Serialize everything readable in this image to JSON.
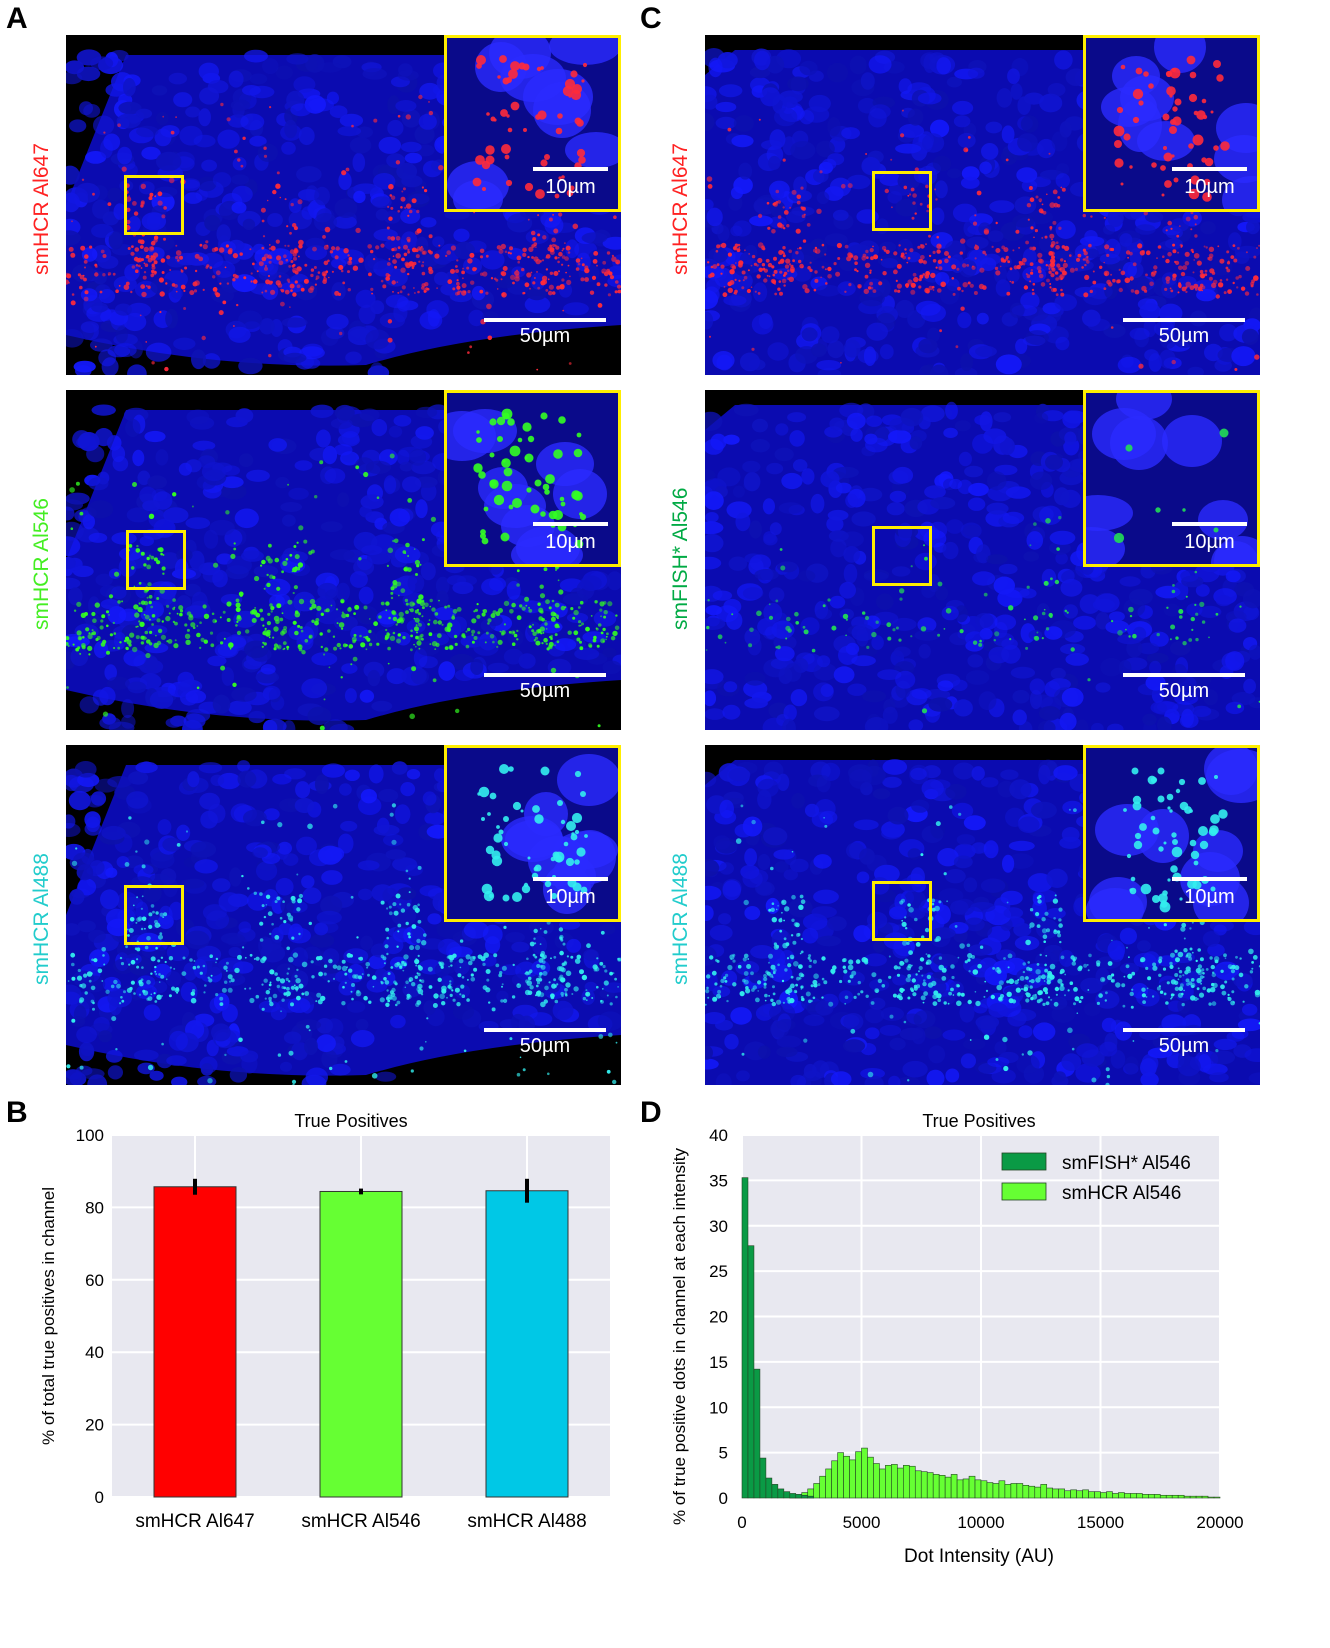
{
  "panels": {
    "A": "A",
    "B": "B",
    "C": "C",
    "D": "D"
  },
  "colors": {
    "nuclei": "#1a1aff",
    "red": "#ff1a1a",
    "green": "#44ff22",
    "cyan": "#22dddd",
    "dark_green": "#00aa44",
    "roi": "#ffee00"
  },
  "micrographs": [
    {
      "id": "A1",
      "probe": "smHCR",
      "dye": "Al647",
      "dye_color": "#ff2222",
      "signal": "red",
      "inset_scale": "10µm",
      "scale": "50µm"
    },
    {
      "id": "A2",
      "probe": "smHCR",
      "dye": "Al546",
      "dye_color": "#44ee22",
      "signal": "green",
      "inset_scale": "10µm",
      "scale": "50µm"
    },
    {
      "id": "A3",
      "probe": "smHCR",
      "dye": "Al488",
      "dye_color": "#22cccc",
      "signal": "cyan",
      "inset_scale": "10µm",
      "scale": "50µm"
    },
    {
      "id": "C1",
      "probe": "smHCR",
      "dye": "Al647",
      "dye_color": "#ff2222",
      "signal": "red",
      "inset_scale": "10µm",
      "scale": "50µm"
    },
    {
      "id": "C2",
      "probe": "smFISH*",
      "dye": "Al546",
      "dye_color": "#00aa44",
      "signal": "darkgreen",
      "inset_scale": "10µm",
      "scale": "50µm"
    },
    {
      "id": "C3",
      "probe": "smHCR",
      "dye": "Al488",
      "dye_color": "#22cccc",
      "signal": "cyan",
      "inset_scale": "10µm",
      "scale": "50µm"
    }
  ],
  "chart_data": [
    {
      "type": "bar",
      "title": "True Positives",
      "ylabel": "% of total true positives in channel",
      "xlabel": "",
      "ylim": [
        0,
        100
      ],
      "yticks": [
        0,
        20,
        40,
        60,
        80,
        100
      ],
      "categories": [
        "smHCR Al647",
        "smHCR Al546",
        "smHCR Al488"
      ],
      "values": [
        85.7,
        84.4,
        84.6
      ],
      "errors": [
        2.2,
        0.8,
        3.3
      ],
      "bar_colors": [
        "#ff0000",
        "#66ff33",
        "#00c8e6"
      ],
      "grid": true
    },
    {
      "type": "bar",
      "title": "True Positives",
      "xlabel": "Dot Intensity (AU)",
      "ylabel": "% of true positive dots in channel at each intensity",
      "xlim": [
        0,
        20000
      ],
      "ylim": [
        0,
        40
      ],
      "xticks": [
        0,
        5000,
        10000,
        15000,
        20000
      ],
      "yticks": [
        0,
        5,
        10,
        15,
        20,
        25,
        30,
        35,
        40
      ],
      "bin_width": 250,
      "legend_position": "top-right",
      "grid": true,
      "series": [
        {
          "name": "smFISH* Al546",
          "color": "#0a9a45",
          "x": [
            0,
            250,
            500,
            750,
            1000,
            1250,
            1500,
            1750,
            2000,
            2250,
            2500,
            2750
          ],
          "values": [
            35.3,
            27.8,
            14.2,
            4.4,
            2.2,
            1.5,
            1.0,
            0.7,
            0.5,
            0.4,
            0.3,
            0.2
          ]
        },
        {
          "name": "smHCR Al546",
          "color": "#66ff33",
          "x": [
            2000,
            2250,
            2500,
            2750,
            3000,
            3250,
            3500,
            3750,
            4000,
            4250,
            4500,
            4750,
            5000,
            5250,
            5500,
            5750,
            6000,
            6250,
            6500,
            6750,
            7000,
            7250,
            7500,
            7750,
            8000,
            8250,
            8500,
            8750,
            9000,
            9250,
            9500,
            9750,
            10000,
            10250,
            10500,
            10750,
            11000,
            11250,
            11500,
            11750,
            12000,
            12250,
            12500,
            12750,
            13000,
            13250,
            13500,
            13750,
            14000,
            14250,
            14500,
            14750,
            15000,
            15250,
            15500,
            15750,
            16000,
            16250,
            16500,
            16750,
            17000,
            17250,
            17500,
            17750,
            18000,
            18250,
            18500,
            18750,
            19000,
            19250,
            19500,
            19750
          ],
          "values": [
            0.2,
            0.3,
            0.6,
            1.0,
            1.6,
            2.4,
            3.2,
            4.1,
            5.0,
            4.6,
            4.2,
            5.1,
            5.5,
            4.5,
            3.8,
            3.2,
            3.6,
            3.7,
            3.3,
            3.6,
            3.5,
            3.0,
            2.9,
            2.8,
            2.6,
            2.5,
            2.3,
            2.6,
            2.0,
            2.1,
            2.4,
            2.0,
            1.9,
            1.7,
            1.6,
            1.9,
            1.5,
            1.6,
            1.6,
            1.4,
            1.3,
            1.2,
            1.5,
            1.1,
            1.0,
            1.0,
            0.8,
            0.9,
            0.8,
            0.9,
            0.7,
            0.7,
            0.6,
            0.7,
            0.5,
            0.6,
            0.5,
            0.5,
            0.5,
            0.4,
            0.4,
            0.4,
            0.3,
            0.3,
            0.3,
            0.3,
            0.2,
            0.2,
            0.2,
            0.2,
            0.1,
            0.1
          ]
        }
      ]
    }
  ]
}
